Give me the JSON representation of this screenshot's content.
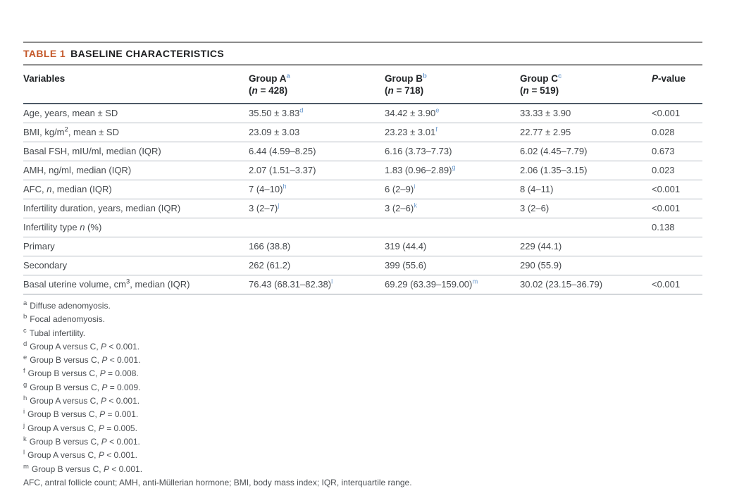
{
  "colors": {
    "accent_orange": "#c4582a",
    "superscript_blue": "#6e9ccf",
    "header_rule": "#4e5a67",
    "row_rule": "#b4bbc3",
    "caption_rule": "#8b8b8b"
  },
  "table": {
    "label": "TABLE 1",
    "title": "BASELINE CHARACTERISTICS",
    "columns": {
      "variables": "Variables",
      "groups": [
        {
          "name": "Group A",
          "sup": "a",
          "open": "(",
          "n": "n",
          "count": " = 428)"
        },
        {
          "name": "Group B",
          "sup": "b",
          "open": "(",
          "n": "n",
          "count": " = 718)"
        },
        {
          "name": "Group C",
          "sup": "c",
          "open": "(",
          "n": "n",
          "count": " = 519)"
        }
      ],
      "pvalue": {
        "p": "P",
        "rest": "-value"
      }
    },
    "rows": [
      {
        "label": {
          "pre": "Age, years, mean ± SD",
          "supnum": "",
          "it": "",
          "post": ""
        },
        "a": {
          "text": "35.50 ± 3.83",
          "sup": "d"
        },
        "b": {
          "text": "34.42 ± 3.90",
          "sup": "e"
        },
        "c": {
          "text": "33.33 ± 3.90",
          "sup": ""
        },
        "p": "<0.001"
      },
      {
        "label": {
          "pre": "BMI, kg/m",
          "supnum": "2",
          "it": "",
          "post": ", mean ± SD"
        },
        "a": {
          "text": "23.09 ± 3.03",
          "sup": ""
        },
        "b": {
          "text": "23.23 ± 3.01",
          "sup": "f"
        },
        "c": {
          "text": "22.77 ± 2.95",
          "sup": ""
        },
        "p": "0.028"
      },
      {
        "label": {
          "pre": "Basal FSH, mIU/ml, median (IQR)",
          "supnum": "",
          "it": "",
          "post": ""
        },
        "a": {
          "text": "6.44 (4.59–8.25)",
          "sup": ""
        },
        "b": {
          "text": "6.16 (3.73–7.73)",
          "sup": ""
        },
        "c": {
          "text": "6.02 (4.45–7.79)",
          "sup": ""
        },
        "p": "0.673"
      },
      {
        "label": {
          "pre": "AMH, ng/ml, median (IQR)",
          "supnum": "",
          "it": "",
          "post": ""
        },
        "a": {
          "text": "2.07 (1.51–3.37)",
          "sup": ""
        },
        "b": {
          "text": "1.83 (0.96–2.89)",
          "sup": "g"
        },
        "c": {
          "text": "2.06 (1.35–3.15)",
          "sup": ""
        },
        "p": "0.023"
      },
      {
        "label": {
          "pre": "AFC, ",
          "supnum": "",
          "it": "n",
          "post": ", median (IQR)"
        },
        "a": {
          "text": "7 (4–10)",
          "sup": "h"
        },
        "b": {
          "text": "6 (2–9)",
          "sup": "i"
        },
        "c": {
          "text": "8 (4–11)",
          "sup": ""
        },
        "p": "<0.001"
      },
      {
        "label": {
          "pre": "Infertility duration, years, median (IQR)",
          "supnum": "",
          "it": "",
          "post": ""
        },
        "a": {
          "text": "3 (2–7)",
          "sup": "j"
        },
        "b": {
          "text": "3 (2–6)",
          "sup": "k"
        },
        "c": {
          "text": "3 (2–6)",
          "sup": ""
        },
        "p": "<0.001"
      },
      {
        "label": {
          "pre": "Infertility type ",
          "supnum": "",
          "it": "n",
          "post": " (%)"
        },
        "a": {
          "text": "",
          "sup": ""
        },
        "b": {
          "text": "",
          "sup": ""
        },
        "c": {
          "text": "",
          "sup": ""
        },
        "p": "0.138"
      },
      {
        "label": {
          "pre": "Primary",
          "supnum": "",
          "it": "",
          "post": ""
        },
        "a": {
          "text": "166 (38.8)",
          "sup": ""
        },
        "b": {
          "text": "319 (44.4)",
          "sup": ""
        },
        "c": {
          "text": "229 (44.1)",
          "sup": ""
        },
        "p": ""
      },
      {
        "label": {
          "pre": "Secondary",
          "supnum": "",
          "it": "",
          "post": ""
        },
        "a": {
          "text": "262 (61.2)",
          "sup": ""
        },
        "b": {
          "text": "399 (55.6)",
          "sup": ""
        },
        "c": {
          "text": "290 (55.9)",
          "sup": ""
        },
        "p": ""
      },
      {
        "label": {
          "pre": "Basal uterine volume, cm",
          "supnum": "3",
          "it": "",
          "post": ", median (IQR)"
        },
        "a": {
          "text": "76.43 (68.31–82.38)",
          "sup": "l"
        },
        "b": {
          "text": "69.29 (63.39–159.00)",
          "sup": "m"
        },
        "c": {
          "text": "30.02 (23.15–36.79)",
          "sup": ""
        },
        "p": "<0.001"
      }
    ]
  },
  "footnotes": [
    {
      "m": "a",
      "pre": "Diffuse adenomyosis.",
      "p": "",
      "post": ""
    },
    {
      "m": "b",
      "pre": "Focal adenomyosis.",
      "p": "",
      "post": ""
    },
    {
      "m": "c",
      "pre": "Tubal infertility.",
      "p": "",
      "post": ""
    },
    {
      "m": "d",
      "pre": "Group A versus C, ",
      "p": "P",
      "post": " < 0.001."
    },
    {
      "m": "e",
      "pre": "Group B versus C, ",
      "p": "P",
      "post": " < 0.001."
    },
    {
      "m": "f",
      "pre": "Group B versus C, ",
      "p": "P",
      "post": " = 0.008."
    },
    {
      "m": "g",
      "pre": "Group B versus C, ",
      "p": "P",
      "post": " = 0.009."
    },
    {
      "m": "h",
      "pre": "Group A versus C, ",
      "p": "P",
      "post": " < 0.001."
    },
    {
      "m": "i",
      "pre": "Group B versus C, ",
      "p": "P",
      "post": " = 0.001."
    },
    {
      "m": "j",
      "pre": "Group A versus C, ",
      "p": "P",
      "post": " = 0.005."
    },
    {
      "m": "k",
      "pre": "Group B versus C, ",
      "p": "P",
      "post": " < 0.001."
    },
    {
      "m": "l",
      "pre": "Group A versus C, ",
      "p": "P",
      "post": " < 0.001."
    },
    {
      "m": "m",
      "pre": "Group B versus C, ",
      "p": "P",
      "post": " < 0.001."
    }
  ],
  "abbreviations": "AFC, antral follicle count; AMH, anti-Müllerian hormone; BMI, body mass index; IQR, interquartile range."
}
